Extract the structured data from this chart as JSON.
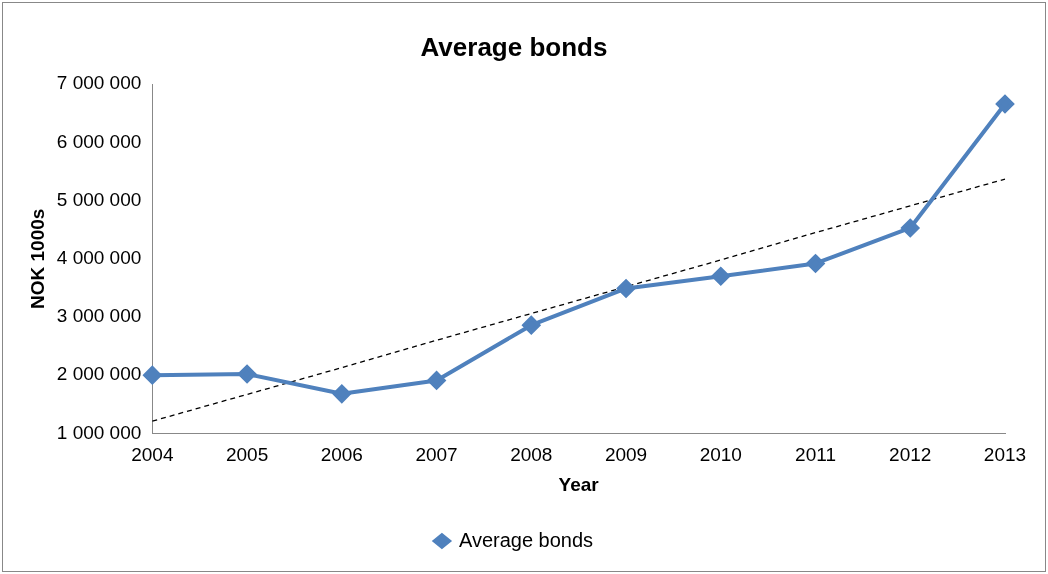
{
  "chart_data": {
    "type": "line",
    "title": "Average bonds",
    "xlabel": "Year",
    "ylabel": "NOK 1000s",
    "categories": [
      "2004",
      "2005",
      "2006",
      "2007",
      "2008",
      "2009",
      "2010",
      "2011",
      "2012",
      "2013"
    ],
    "series": [
      {
        "name": "Average bonds",
        "color": "#4f81bd",
        "marker": "diamond",
        "line_style": "solid",
        "values": [
          2000000,
          2020000,
          1680000,
          1910000,
          2860000,
          3490000,
          3700000,
          3920000,
          4530000,
          6660000
        ]
      },
      {
        "color": "#000000",
        "marker": "none",
        "line_style": "dashed",
        "values": [
          1210000,
          1670000,
          2130000,
          2600000,
          3060000,
          3520000,
          3980000,
          4450000,
          4910000,
          5370000
        ]
      }
    ],
    "ylim": [
      1000000,
      7000000
    ],
    "yticks": [
      {
        "value": 1000000,
        "label": "1 000 000"
      },
      {
        "value": 2000000,
        "label": "2 000 000"
      },
      {
        "value": 3000000,
        "label": "3 000 000"
      },
      {
        "value": 4000000,
        "label": "4 000 000"
      },
      {
        "value": 5000000,
        "label": "5 000 000"
      },
      {
        "value": 6000000,
        "label": "6 000 000"
      },
      {
        "value": 7000000,
        "label": "7 000 000"
      }
    ],
    "grid": false,
    "legend": "bottom"
  }
}
